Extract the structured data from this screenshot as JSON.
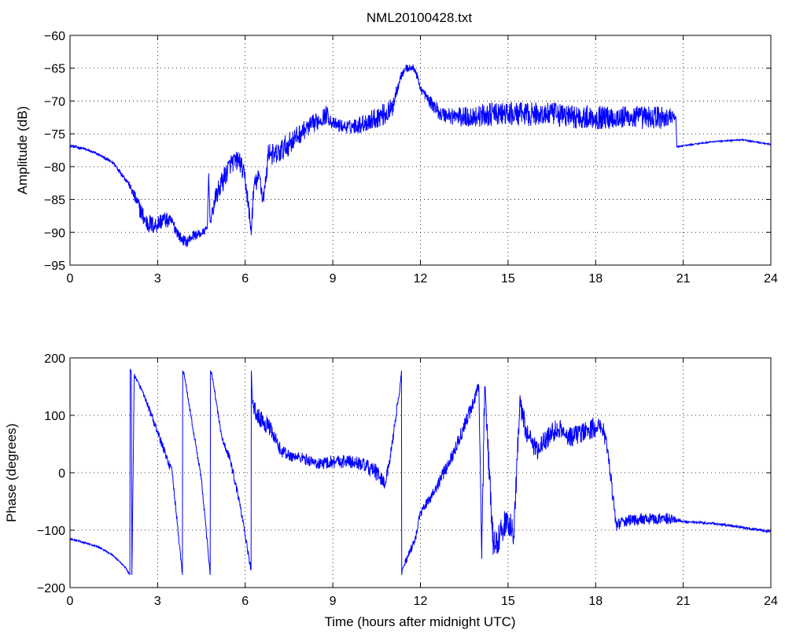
{
  "title": "NML20100428.txt",
  "colors": {
    "line": "#0000ff",
    "axes": "#000000",
    "grid": "#000000",
    "background": "#ffffff"
  },
  "chart_data": [
    {
      "type": "line",
      "title": "NML20100428.txt",
      "xlabel": "",
      "ylabel": "Amplitude (dB)",
      "xlim": [
        0,
        24
      ],
      "ylim": [
        -95,
        -60
      ],
      "xticks": [
        0,
        3,
        6,
        9,
        12,
        15,
        18,
        21,
        24
      ],
      "yticks": [
        -95,
        -90,
        -85,
        -80,
        -75,
        -70,
        -65,
        -60
      ],
      "xtick_labels": [
        "0",
        "3",
        "6",
        "9",
        "12",
        "15",
        "18",
        "21",
        "24"
      ],
      "ytick_labels": [
        "−95",
        "−90",
        "−85",
        "−80",
        "−75",
        "−70",
        "−65",
        "−60"
      ],
      "grid": true,
      "series": [
        {
          "x": [
            0,
            0.5,
            1.0,
            1.5,
            2.0,
            2.3,
            2.6,
            2.9,
            3.2,
            3.5,
            3.8,
            4.0,
            4.2,
            4.5,
            4.7,
            4.75,
            4.8,
            5.0,
            5.2,
            5.5,
            5.8,
            6.0,
            6.1,
            6.2,
            6.3,
            6.5,
            6.6,
            6.7,
            6.8,
            7.0,
            7.5,
            8.0,
            8.5,
            8.8,
            9.0,
            9.5,
            10.0,
            10.5,
            11.0,
            11.3,
            11.5,
            11.8,
            12.0,
            12.3,
            12.7,
            13.5,
            14.5,
            15.5,
            16.5,
            17.5,
            18.5,
            19.5,
            20.5,
            20.75,
            20.78,
            21.0,
            22.0,
            23.0,
            24.0
          ],
          "y": [
            -76.8,
            -77.3,
            -78.2,
            -79.5,
            -82.5,
            -85.5,
            -88.5,
            -89.0,
            -88.0,
            -88.5,
            -91.0,
            -91.5,
            -90.5,
            -90.2,
            -89.5,
            -81.0,
            -88.5,
            -84.5,
            -82.5,
            -79.5,
            -79.0,
            -82.0,
            -85.5,
            -90.0,
            -83.0,
            -81.5,
            -85.0,
            -82.5,
            -77.5,
            -78.5,
            -76.5,
            -74.5,
            -73.0,
            -72.0,
            -73.5,
            -74.0,
            -73.5,
            -72.5,
            -71.5,
            -66.5,
            -65.0,
            -65.0,
            -68.0,
            -70.0,
            -72.0,
            -72.5,
            -72.0,
            -72.0,
            -72.0,
            -72.5,
            -72.5,
            -72.5,
            -72.5,
            -72.5,
            -77.0,
            -76.8,
            -76.2,
            -75.9,
            -76.6
          ],
          "noise": [
            0.25,
            0.2,
            0.2,
            0.3,
            0.4,
            1.2,
            1.6,
            1.4,
            1.3,
            1.0,
            0.8,
            0.8,
            0.8,
            0.6,
            0.6,
            0.6,
            0.6,
            1.5,
            1.8,
            1.5,
            1.5,
            1.5,
            1.5,
            1.5,
            1.5,
            1.5,
            1.5,
            1.5,
            1.5,
            1.8,
            1.8,
            1.4,
            1.4,
            1.4,
            1.0,
            1.0,
            1.4,
            1.6,
            1.8,
            0.6,
            0.6,
            0.6,
            0.6,
            0.9,
            1.2,
            1.6,
            1.8,
            1.8,
            1.8,
            1.8,
            1.8,
            1.8,
            1.8,
            0.2,
            0.1,
            0.1,
            0.1,
            0.1,
            0.1
          ]
        }
      ]
    },
    {
      "type": "line",
      "title": "",
      "xlabel": "Time (hours after midnight UTC)",
      "ylabel": "Phase (degrees)",
      "xlim": [
        0,
        24
      ],
      "ylim": [
        -200,
        200
      ],
      "xticks": [
        0,
        3,
        6,
        9,
        12,
        15,
        18,
        21,
        24
      ],
      "yticks": [
        -200,
        -100,
        0,
        100,
        200
      ],
      "xtick_labels": [
        "0",
        "3",
        "6",
        "9",
        "12",
        "15",
        "18",
        "21",
        "24"
      ],
      "ytick_labels": [
        "−200",
        "−100",
        "0",
        "100",
        "200"
      ],
      "grid": true,
      "series": [
        {
          "x": [
            0,
            0.5,
            1.0,
            1.5,
            1.9,
            2.05,
            2.06,
            2.1,
            2.12,
            2.2,
            2.5,
            3.0,
            3.5,
            3.85,
            3.86,
            3.9,
            4.2,
            4.5,
            4.8,
            4.81,
            4.85,
            5.2,
            5.5,
            5.8,
            6.2,
            6.21,
            6.25,
            6.4,
            6.8,
            7.2,
            7.5,
            8.0,
            8.5,
            9.0,
            9.5,
            10.0,
            10.5,
            10.8,
            11.0,
            11.3,
            11.35,
            11.36,
            11.4,
            11.8,
            12.0,
            12.5,
            13.0,
            13.5,
            14.0,
            14.1,
            14.2,
            14.5,
            14.8,
            15.0,
            15.2,
            15.4,
            15.5,
            15.7,
            16.0,
            16.5,
            16.8,
            17.0,
            17.5,
            18.0,
            18.3,
            18.5,
            18.7,
            19.0,
            19.5,
            20.0,
            20.5,
            20.8,
            21.0,
            22.0,
            23.0,
            24.0
          ],
          "y": [
            -115,
            -122,
            -130,
            -145,
            -165,
            -178,
            180,
            175,
            -178,
            170,
            140,
            70,
            0,
            -178,
            178,
            175,
            80,
            -10,
            -178,
            178,
            175,
            60,
            20,
            -50,
            -170,
            178,
            120,
            100,
            80,
            40,
            30,
            25,
            15,
            20,
            20,
            15,
            0,
            -20,
            40,
            150,
            178,
            -178,
            -165,
            -120,
            -70,
            -30,
            20,
            80,
            150,
            -150,
            150,
            -130,
            -100,
            -80,
            -110,
            120,
            100,
            60,
            40,
            70,
            80,
            60,
            70,
            80,
            70,
            0,
            -90,
            -85,
            -80,
            -80,
            -80,
            -82,
            -85,
            -88,
            -95,
            -103
          ],
          "noise": [
            1.5,
            1.5,
            1.5,
            1.5,
            1.5,
            1.5,
            1.5,
            1.5,
            1.5,
            3,
            5,
            7,
            8,
            4,
            4,
            4,
            5,
            6,
            4,
            4,
            4,
            6,
            8,
            8,
            5,
            5,
            12,
            15,
            15,
            12,
            10,
            10,
            10,
            12,
            12,
            12,
            15,
            10,
            10,
            6,
            4,
            4,
            5,
            8,
            8,
            10,
            12,
            14,
            12,
            25,
            25,
            25,
            25,
            25,
            25,
            22,
            22,
            18,
            18,
            18,
            18,
            18,
            18,
            18,
            18,
            14,
            12,
            10,
            10,
            10,
            10,
            4,
            2,
            2,
            2,
            2
          ]
        }
      ]
    }
  ]
}
